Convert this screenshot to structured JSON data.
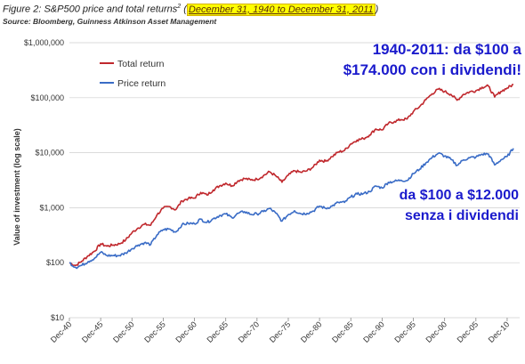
{
  "header": {
    "title_prefix": "Figure 2: S&P500 price and total returns",
    "title_sup": "2",
    "title_paren_open": " (",
    "title_highlight": "December 31, 1940 to December 31, 2011",
    "title_paren_close": ")",
    "source": "Source: Bloomberg, Guinness Atkinson Asset Management"
  },
  "chart_data": {
    "type": "line",
    "ylabel": "Value of investment (log scale)",
    "xlabel": "",
    "yscale": "log",
    "ylim": [
      10,
      1000000
    ],
    "xlim": [
      1940,
      2012
    ],
    "yticks": [
      10,
      100,
      1000,
      10000,
      100000,
      1000000
    ],
    "ytick_labels": [
      "$10",
      "$100",
      "$1,000",
      "$10,000",
      "$100,000",
      "$1,000,000"
    ],
    "xtick_labels": [
      "Dec-40",
      "Dec-45",
      "Dec-50",
      "Dec-55",
      "Dec-60",
      "Dec-65",
      "Dec-70",
      "Dec-75",
      "Dec-80",
      "Dec-85",
      "Dec-90",
      "Dec-95",
      "Dec-00",
      "Dec-05",
      "Dec-10"
    ],
    "xtick_years": [
      1940,
      1945,
      1950,
      1955,
      1960,
      1965,
      1970,
      1975,
      1980,
      1985,
      1990,
      1995,
      2000,
      2005,
      2010
    ],
    "grid": true,
    "legend_position": "top-left",
    "series": [
      {
        "name": "Total return",
        "color": "#c0282d",
        "x": [
          1940,
          1941,
          1942,
          1943,
          1944,
          1945,
          1946,
          1947,
          1948,
          1949,
          1950,
          1951,
          1952,
          1953,
          1954,
          1955,
          1956,
          1957,
          1958,
          1959,
          1960,
          1961,
          1962,
          1963,
          1964,
          1965,
          1966,
          1967,
          1968,
          1969,
          1970,
          1971,
          1972,
          1973,
          1974,
          1975,
          1976,
          1977,
          1978,
          1979,
          1980,
          1981,
          1982,
          1983,
          1984,
          1985,
          1986,
          1987,
          1988,
          1989,
          1990,
          1991,
          1992,
          1993,
          1994,
          1995,
          1996,
          1997,
          1998,
          1999,
          2000,
          2001,
          2002,
          2003,
          2004,
          2005,
          2006,
          2007,
          2008,
          2009,
          2010,
          2011
        ],
        "y": [
          100,
          89,
          107,
          134,
          162,
          220,
          200,
          210,
          220,
          260,
          350,
          430,
          500,
          480,
          740,
          980,
          1050,
          920,
          1330,
          1470,
          1500,
          1900,
          1700,
          2100,
          2500,
          2800,
          2500,
          3100,
          3400,
          3200,
          3300,
          3800,
          4500,
          3800,
          2900,
          3900,
          4700,
          4400,
          4700,
          5500,
          7300,
          7000,
          8500,
          10300,
          11000,
          14500,
          17000,
          18000,
          21000,
          27000,
          26000,
          34000,
          37000,
          40000,
          41000,
          56000,
          69000,
          92000,
          118000,
          143000,
          130000,
          115000,
          90000,
          115000,
          128000,
          134000,
          155000,
          163000,
          103000,
          130000,
          150000,
          174000
        ]
      },
      {
        "name": "Price return",
        "color": "#3a6cc6",
        "x": [
          1940,
          1941,
          1942,
          1943,
          1944,
          1945,
          1946,
          1947,
          1948,
          1949,
          1950,
          1951,
          1952,
          1953,
          1954,
          1955,
          1956,
          1957,
          1958,
          1959,
          1960,
          1961,
          1962,
          1963,
          1964,
          1965,
          1966,
          1967,
          1968,
          1969,
          1970,
          1971,
          1972,
          1973,
          1974,
          1975,
          1976,
          1977,
          1978,
          1979,
          1980,
          1981,
          1982,
          1983,
          1984,
          1985,
          1986,
          1987,
          1988,
          1989,
          1990,
          1991,
          1992,
          1993,
          1994,
          1995,
          1996,
          1997,
          1998,
          1999,
          2000,
          2001,
          2002,
          2003,
          2004,
          2005,
          2006,
          2007,
          2008,
          2009,
          2010,
          2011
        ],
        "y": [
          100,
          82,
          90,
          105,
          120,
          155,
          135,
          135,
          135,
          150,
          180,
          210,
          230,
          215,
          320,
          400,
          410,
          360,
          490,
          520,
          510,
          620,
          540,
          630,
          720,
          770,
          660,
          790,
          850,
          760,
          770,
          850,
          970,
          800,
          570,
          750,
          880,
          780,
          790,
          870,
          1070,
          970,
          1070,
          1250,
          1250,
          1570,
          1770,
          1800,
          1960,
          2480,
          2290,
          2900,
          3020,
          3170,
          3120,
          4160,
          5020,
          6540,
          8190,
          9790,
          8700,
          7600,
          5900,
          7400,
          8100,
          8300,
          9400,
          9500,
          6000,
          7400,
          8500,
          12000
        ]
      }
    ]
  },
  "annotations": {
    "total_line1": "1940-2011: da $100 a",
    "total_line2": "$174.000 con i dividendi!",
    "price_line1": "da $100 a $12.000",
    "price_line2": "senza i dividendi"
  }
}
